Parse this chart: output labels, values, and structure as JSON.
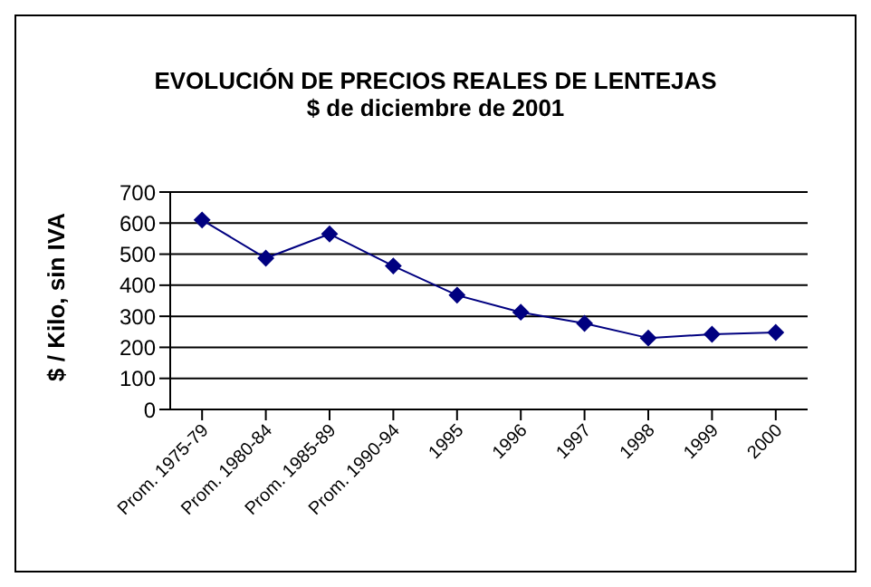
{
  "chart_data": {
    "type": "line",
    "title": "EVOLUCIÓN DE PRECIOS REALES DE LENTEJAS",
    "subtitle": "$ de diciembre de 2001",
    "ylabel": "$ / Kilo, sin IVA",
    "categories": [
      "Prom. 1975-79",
      "Prom. 1980-84",
      "Prom. 1985-89",
      "Prom. 1990-94",
      "1995",
      "1996",
      "1997",
      "1998",
      "1999",
      "2000"
    ],
    "series": [
      {
        "color": "#000080",
        "values": [
          610,
          487,
          565,
          462,
          368,
          313,
          277,
          230,
          242,
          248
        ]
      }
    ],
    "ylim": [
      0,
      700
    ],
    "yticks": [
      0,
      100,
      200,
      300,
      400,
      500,
      600,
      700
    ],
    "grid": "y",
    "marker": "diamond",
    "legend": false
  }
}
